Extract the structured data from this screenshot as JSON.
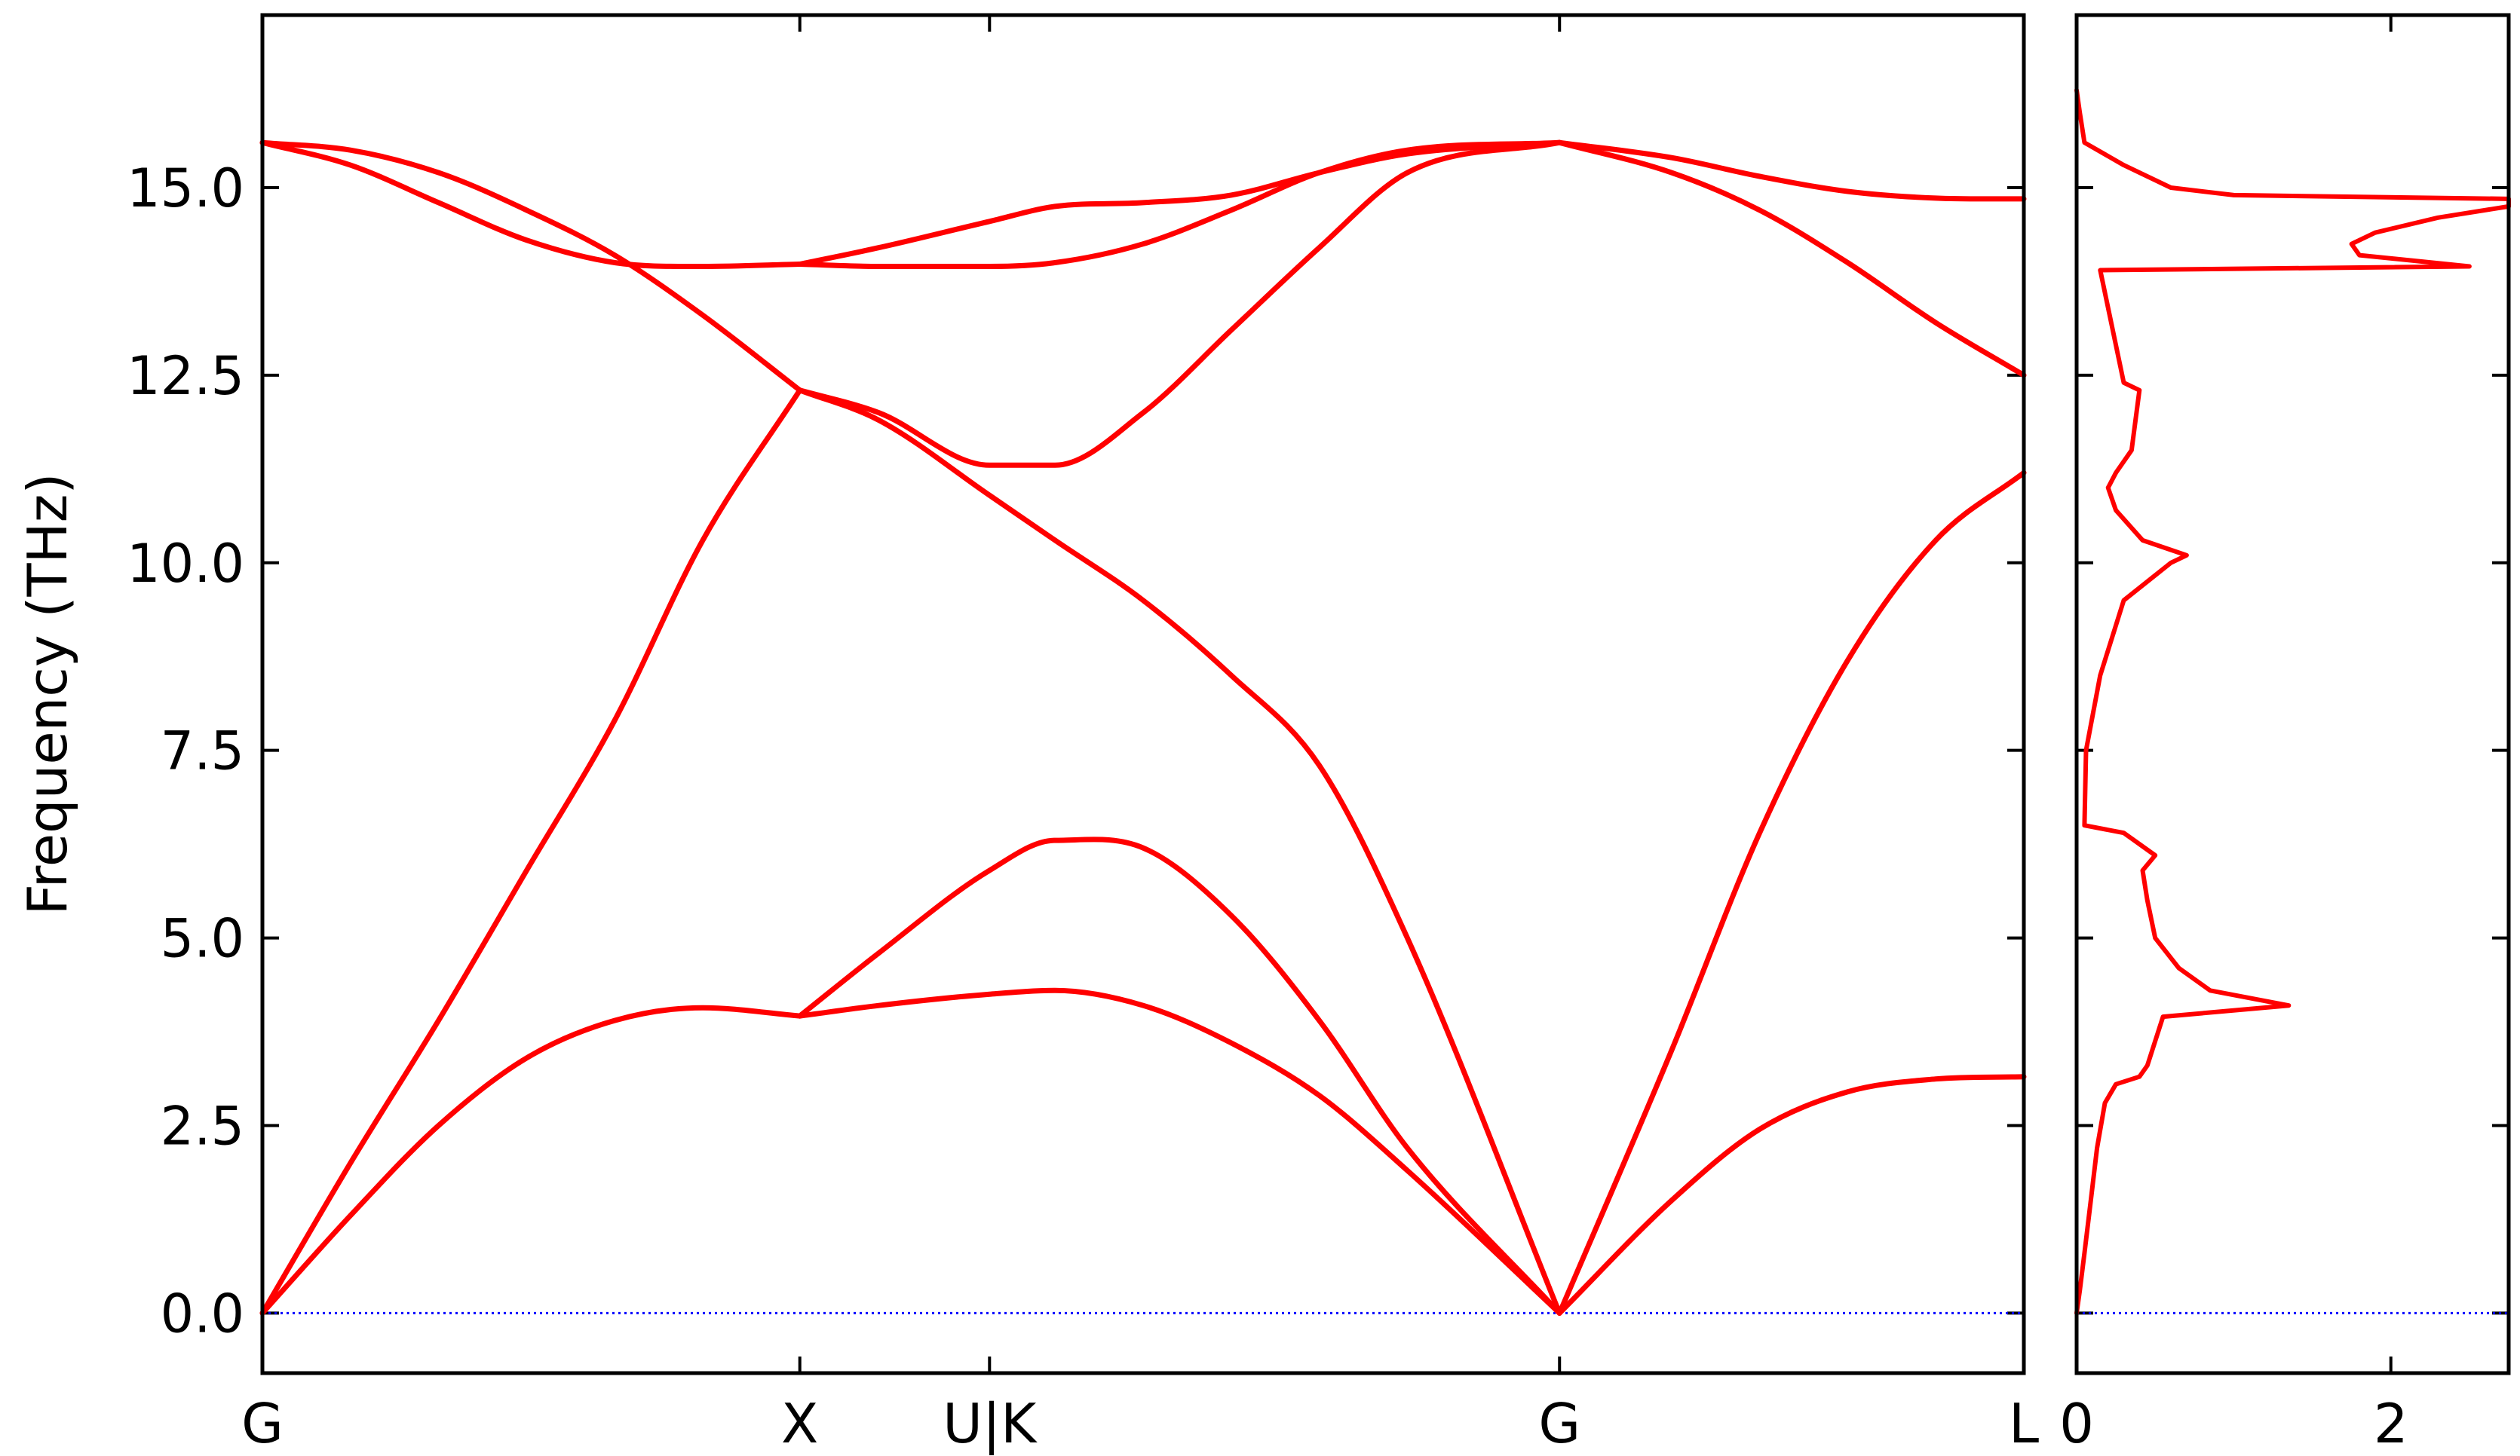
{
  "chart_data": [
    {
      "type": "line",
      "panel": "band structure",
      "ylabel": "Frequency (THz)",
      "ylim": [
        -0.8,
        17.3
      ],
      "yticks": [
        0.0,
        2.5,
        5.0,
        7.5,
        10.0,
        12.5,
        15.0
      ],
      "ytick_labels": [
        "0.0",
        "2.5",
        "5.0",
        "7.5",
        "10.0",
        "12.5",
        "15.0"
      ],
      "xlim": [
        0,
        1
      ],
      "xticks": [
        0,
        0.3051,
        0.4128,
        0.7364,
        1.0
      ],
      "xtick_labels": [
        "G",
        "X",
        "U|K",
        "G",
        "L"
      ],
      "line_color": "#ff0000",
      "zero_line_color": "#0000ff",
      "series": [
        {
          "x": [
            0,
            0.05,
            0.1,
            0.15,
            0.2,
            0.25,
            0.3051
          ],
          "values": [
            0,
            2.0,
            3.9,
            5.9,
            7.9,
            10.3,
            12.3
          ]
        },
        {
          "x": [
            0,
            0.05,
            0.1,
            0.15,
            0.2,
            0.25,
            0.3051
          ],
          "values": [
            0,
            1.3,
            2.5,
            3.4,
            3.9,
            4.07,
            3.96
          ]
        },
        {
          "x": [
            0,
            0.05,
            0.1,
            0.15,
            0.2,
            0.25,
            0.3051
          ],
          "values": [
            15.6,
            15.3,
            14.8,
            14.3,
            14.0,
            13.95,
            13.98
          ]
        },
        {
          "x": [
            0,
            0.05,
            0.1,
            0.15,
            0.2,
            0.25,
            0.3051
          ],
          "values": [
            15.6,
            15.5,
            15.2,
            14.7,
            14.1,
            13.3,
            12.3
          ]
        },
        {
          "x": [
            0.3051,
            0.35,
            0.4128,
            0.45,
            0.5,
            0.55,
            0.6,
            0.65,
            0.7364
          ],
          "values": [
            3.96,
            4.1,
            4.25,
            4.3,
            4.1,
            3.6,
            2.9,
            1.9,
            0
          ]
        },
        {
          "x": [
            0.3051,
            0.35,
            0.4128,
            0.45,
            0.5,
            0.55,
            0.6,
            0.65,
            0.7364
          ],
          "values": [
            3.96,
            4.8,
            5.9,
            6.3,
            6.2,
            5.3,
            3.9,
            2.2,
            0
          ]
        },
        {
          "x": [
            0.3051,
            0.35,
            0.4128,
            0.45,
            0.5,
            0.55,
            0.6,
            0.65,
            0.7364
          ],
          "values": [
            12.3,
            11.9,
            10.9,
            10.3,
            9.5,
            8.5,
            7.3,
            5.0,
            0
          ]
        },
        {
          "x": [
            0.3051,
            0.35,
            0.4128,
            0.45,
            0.5,
            0.55,
            0.6,
            0.65,
            0.7364
          ],
          "values": [
            12.3,
            12.0,
            11.3,
            11.3,
            12.0,
            13.1,
            14.2,
            15.2,
            15.6
          ]
        },
        {
          "x": [
            0.3051,
            0.35,
            0.4128,
            0.45,
            0.5,
            0.55,
            0.6,
            0.65,
            0.7364
          ],
          "values": [
            13.98,
            14.2,
            14.55,
            14.75,
            14.8,
            14.9,
            15.2,
            15.45,
            15.6
          ]
        },
        {
          "x": [
            0.3051,
            0.35,
            0.4128,
            0.45,
            0.5,
            0.55,
            0.6,
            0.65,
            0.7364
          ],
          "values": [
            13.98,
            13.95,
            13.95,
            14.0,
            14.25,
            14.7,
            15.2,
            15.5,
            15.6
          ]
        },
        {
          "x": [
            0.7364,
            0.8,
            0.85,
            0.9,
            0.95,
            1.0
          ],
          "values": [
            0,
            1.5,
            2.45,
            2.95,
            3.12,
            3.15
          ]
        },
        {
          "x": [
            0.7364,
            0.8,
            0.85,
            0.9,
            0.95,
            1.0
          ],
          "values": [
            0,
            3.5,
            6.4,
            8.7,
            10.3,
            11.2
          ]
        },
        {
          "x": [
            0.7364,
            0.8,
            0.85,
            0.9,
            0.95,
            1.0
          ],
          "values": [
            15.6,
            15.2,
            14.7,
            14.0,
            13.2,
            12.5
          ]
        },
        {
          "x": [
            0.7364,
            0.8,
            0.85,
            0.9,
            0.95,
            1.0
          ],
          "values": [
            15.6,
            15.4,
            15.15,
            14.95,
            14.86,
            14.85
          ]
        }
      ]
    },
    {
      "type": "line",
      "panel": "density of states",
      "xlim": [
        0,
        2.75
      ],
      "xticks": [
        0,
        2
      ],
      "xtick_labels": [
        "0",
        "2"
      ],
      "ylim": [
        -0.8,
        17.3
      ],
      "line_color": "#ff0000",
      "series": [
        {
          "frequency": [
            0,
            0.3,
            0.8,
            1.5,
            2.2,
            2.8,
            3.05,
            3.15,
            3.3,
            3.95,
            4.1,
            4.3,
            4.6,
            5.0,
            5.5,
            5.9,
            6.1,
            6.4,
            6.5,
            7.5,
            8.5,
            9.5,
            10.0,
            10.1,
            10.3,
            10.7,
            11.0,
            11.2,
            11.5,
            12.3,
            12.4,
            13.9,
            13.95,
            14.1,
            14.25,
            14.4,
            14.6,
            14.75,
            14.85,
            14.9,
            15.0,
            15.3,
            15.6,
            16.0,
            16.3
          ],
          "dos": [
            0,
            0.02,
            0.05,
            0.09,
            0.13,
            0.18,
            0.25,
            0.4,
            0.45,
            0.55,
            1.35,
            0.85,
            0.65,
            0.5,
            0.45,
            0.42,
            0.5,
            0.3,
            0.05,
            0.06,
            0.15,
            0.3,
            0.6,
            0.7,
            0.42,
            0.25,
            0.2,
            0.25,
            0.35,
            0.4,
            0.3,
            0.15,
            2.5,
            1.8,
            1.75,
            1.9,
            2.3,
            2.75,
            2.75,
            1.0,
            0.6,
            0.3,
            0.05,
            0.02,
            0
          ]
        }
      ]
    }
  ]
}
